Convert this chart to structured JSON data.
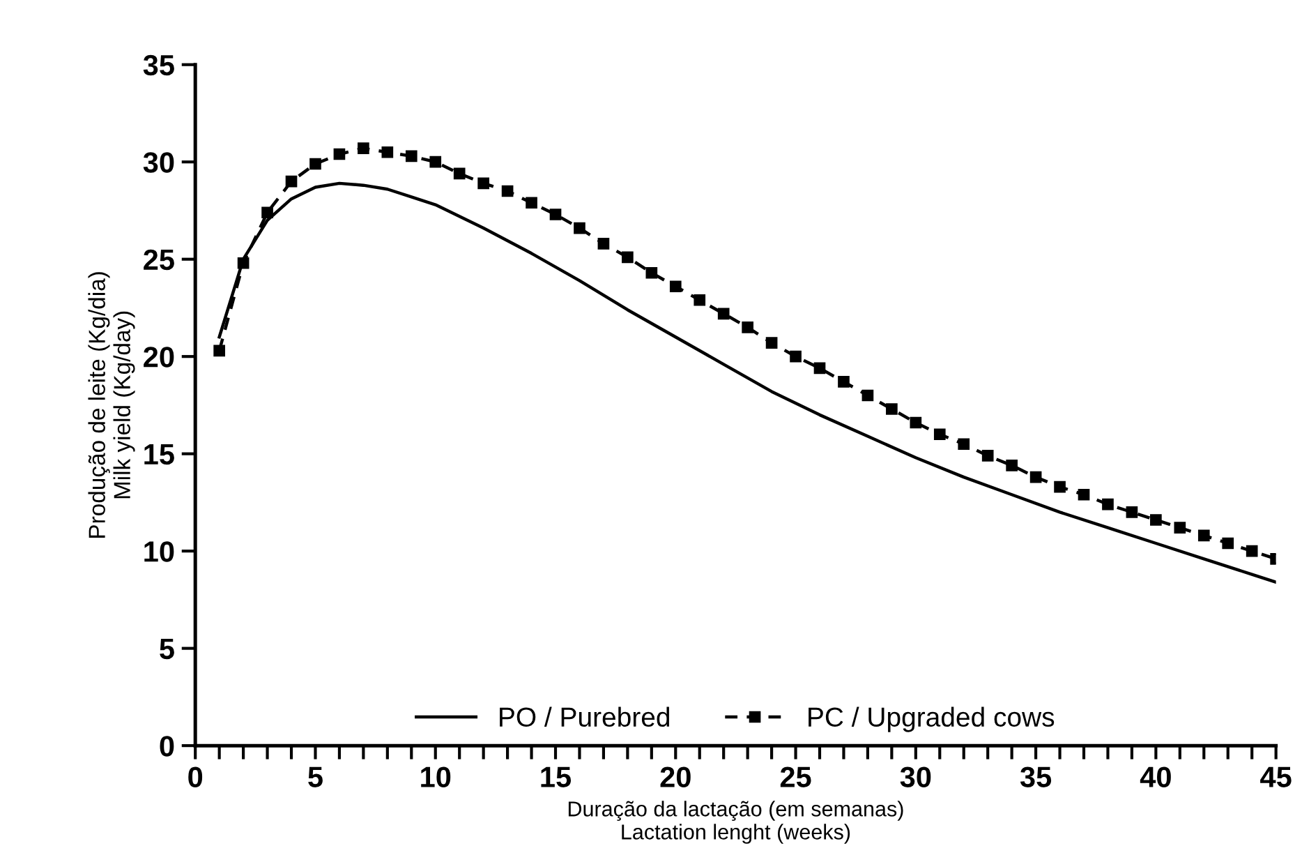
{
  "chart_data": {
    "type": "line",
    "xlabel": "Duração da lactação (em semanas)\nLactation lenght (weeks)",
    "ylabel": "Produção de leite (Kg/dia)\nMilk yield (Kg/day)",
    "series": [
      {
        "name": "PO / Purebred",
        "color": "#000000",
        "line_style": "solid",
        "marker": "none",
        "x": [
          1,
          2,
          3,
          4,
          5,
          6,
          7,
          8,
          9,
          10,
          12,
          14,
          16,
          18,
          20,
          22,
          24,
          26,
          28,
          30,
          32,
          34,
          36,
          38,
          40,
          42,
          44,
          45
        ],
        "values": [
          21.0,
          25.0,
          27.0,
          28.1,
          28.7,
          28.9,
          28.8,
          28.6,
          28.2,
          27.8,
          26.6,
          25.3,
          23.9,
          22.4,
          21.0,
          19.6,
          18.2,
          17.0,
          15.9,
          14.8,
          13.8,
          12.9,
          12.0,
          11.2,
          10.4,
          9.6,
          8.8,
          8.4
        ]
      },
      {
        "name": "PC / Upgraded cows",
        "color": "#000000",
        "line_style": "dashed",
        "marker": "square",
        "x": [
          1,
          2,
          3,
          4,
          5,
          6,
          7,
          8,
          9,
          10,
          11,
          12,
          13,
          14,
          15,
          16,
          17,
          18,
          19,
          20,
          21,
          22,
          23,
          24,
          25,
          26,
          27,
          28,
          29,
          30,
          31,
          32,
          33,
          34,
          35,
          36,
          37,
          38,
          39,
          40,
          41,
          42,
          43,
          44,
          45
        ],
        "values": [
          20.3,
          24.8,
          27.4,
          29.0,
          29.9,
          30.4,
          30.7,
          30.5,
          30.3,
          30.0,
          29.4,
          28.9,
          28.5,
          27.9,
          27.3,
          26.6,
          25.8,
          25.1,
          24.3,
          23.6,
          22.9,
          22.2,
          21.5,
          20.7,
          20.0,
          19.4,
          18.7,
          18.0,
          17.3,
          16.6,
          16.0,
          15.5,
          14.9,
          14.4,
          13.8,
          13.3,
          12.9,
          12.4,
          12.0,
          11.6,
          11.2,
          10.8,
          10.4,
          10.0,
          9.6
        ]
      }
    ],
    "xlim": [
      0,
      45
    ],
    "ylim": [
      0,
      35
    ],
    "xticks": [
      0,
      {
        "value": 1,
        "label": null
      },
      {
        "value": 2,
        "label": null
      },
      {
        "value": 3,
        "label": null
      },
      {
        "value": 4,
        "label": null
      },
      5,
      {
        "value": 6,
        "label": null
      },
      {
        "value": 7,
        "label": null
      },
      {
        "value": 8,
        "label": null
      },
      {
        "value": 9,
        "label": null
      },
      10,
      {
        "value": 11,
        "label": null
      },
      {
        "value": 12,
        "label": null
      },
      {
        "value": 13,
        "label": null
      },
      {
        "value": 14,
        "label": null
      },
      15,
      {
        "value": 16,
        "label": null
      },
      {
        "value": 17,
        "label": null
      },
      {
        "value": 18,
        "label": null
      },
      {
        "value": 19,
        "label": null
      },
      20,
      {
        "value": 21,
        "label": null
      },
      {
        "value": 22,
        "label": null
      },
      {
        "value": 23,
        "label": null
      },
      {
        "value": 24,
        "label": null
      },
      25,
      {
        "value": 26,
        "label": null
      },
      {
        "value": 27,
        "label": null
      },
      {
        "value": 28,
        "label": null
      },
      {
        "value": 29,
        "label": null
      },
      30,
      {
        "value": 31,
        "label": null
      },
      {
        "value": 32,
        "label": null
      },
      {
        "value": 33,
        "label": null
      },
      {
        "value": 34,
        "label": null
      },
      35,
      {
        "value": 36,
        "label": null
      },
      {
        "value": 37,
        "label": null
      },
      {
        "value": 38,
        "label": null
      },
      {
        "value": 39,
        "label": null
      },
      40,
      {
        "value": 41,
        "label": null
      },
      {
        "value": 42,
        "label": null
      },
      {
        "value": 43,
        "label": null
      },
      {
        "value": 44,
        "label": null
      },
      45
    ],
    "yticks": [
      0,
      5,
      10,
      15,
      20,
      25,
      30,
      35
    ],
    "grid": false,
    "legend": "bottom"
  }
}
